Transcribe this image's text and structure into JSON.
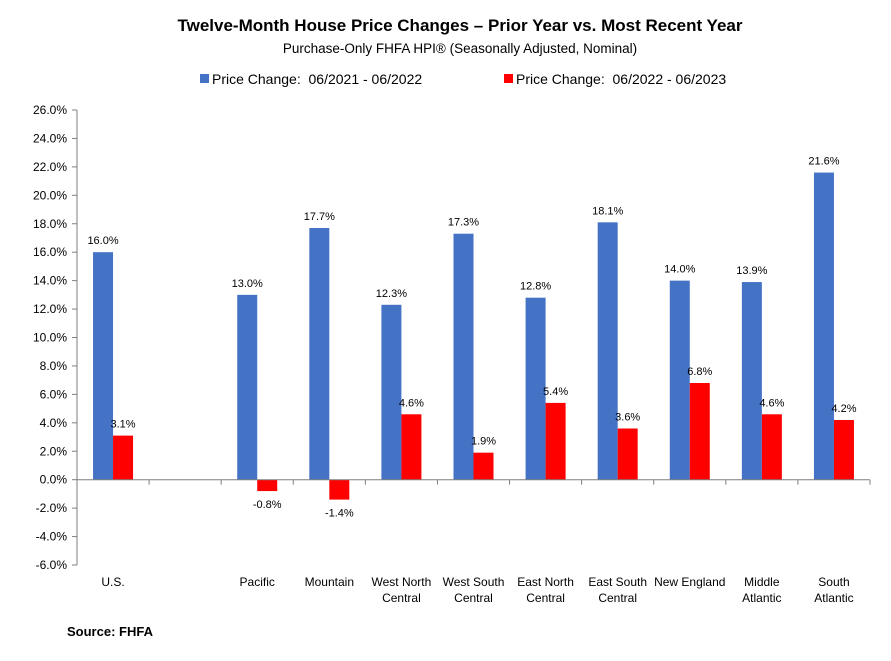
{
  "chart_data": {
    "type": "bar",
    "title": "Twelve-Month House Price Changes – Prior Year vs. Most Recent Year",
    "subtitle": "Purchase-Only FHFA HPI® (Seasonally Adjusted, Nominal)",
    "categories": [
      [
        "U.S."
      ],
      [],
      [
        "Pacific"
      ],
      [
        "Mountain"
      ],
      [
        "West North",
        "Central"
      ],
      [
        "West South",
        "Central"
      ],
      [
        "East North",
        "Central"
      ],
      [
        "East South",
        "Central"
      ],
      [
        "New England"
      ],
      [
        "Middle",
        "Atlantic"
      ],
      [
        "South",
        "Atlantic"
      ]
    ],
    "series": [
      {
        "name": "Price Change:  06/2021 - 06/2022",
        "color": "#4472C4",
        "values": [
          16.0,
          null,
          13.0,
          17.7,
          12.3,
          17.3,
          12.8,
          18.1,
          14.0,
          13.9,
          21.6
        ],
        "labels": [
          "16.0%",
          "",
          "13.0%",
          "17.7%",
          "12.3%",
          "17.3%",
          "12.8%",
          "18.1%",
          "14.0%",
          "13.9%",
          "21.6%"
        ]
      },
      {
        "name": "Price Change:  06/2022 - 06/2023",
        "color": "#FF0000",
        "values": [
          3.1,
          null,
          -0.8,
          -1.4,
          4.6,
          1.9,
          5.4,
          3.6,
          6.8,
          4.6,
          4.2
        ],
        "labels": [
          "3.1%",
          "",
          "-0.8%",
          "-1.4%",
          "4.6%",
          "1.9%",
          "5.4%",
          "3.6%",
          "6.8%",
          "4.6%",
          "4.2%"
        ]
      }
    ],
    "ylim": [
      -6,
      26
    ],
    "yticks": [
      "26.0%",
      "24.0%",
      "22.0%",
      "20.0%",
      "18.0%",
      "16.0%",
      "14.0%",
      "12.0%",
      "10.0%",
      "8.0%",
      "6.0%",
      "4.0%",
      "2.0%",
      "0.0%",
      "-2.0%",
      "-4.0%",
      "-6.0%"
    ],
    "ytick_values": [
      26,
      24,
      22,
      20,
      18,
      16,
      14,
      12,
      10,
      8,
      6,
      4,
      2,
      0,
      -2,
      -4,
      -6
    ],
    "grid": false,
    "legend_position": "top"
  },
  "source": "Source: FHFA"
}
